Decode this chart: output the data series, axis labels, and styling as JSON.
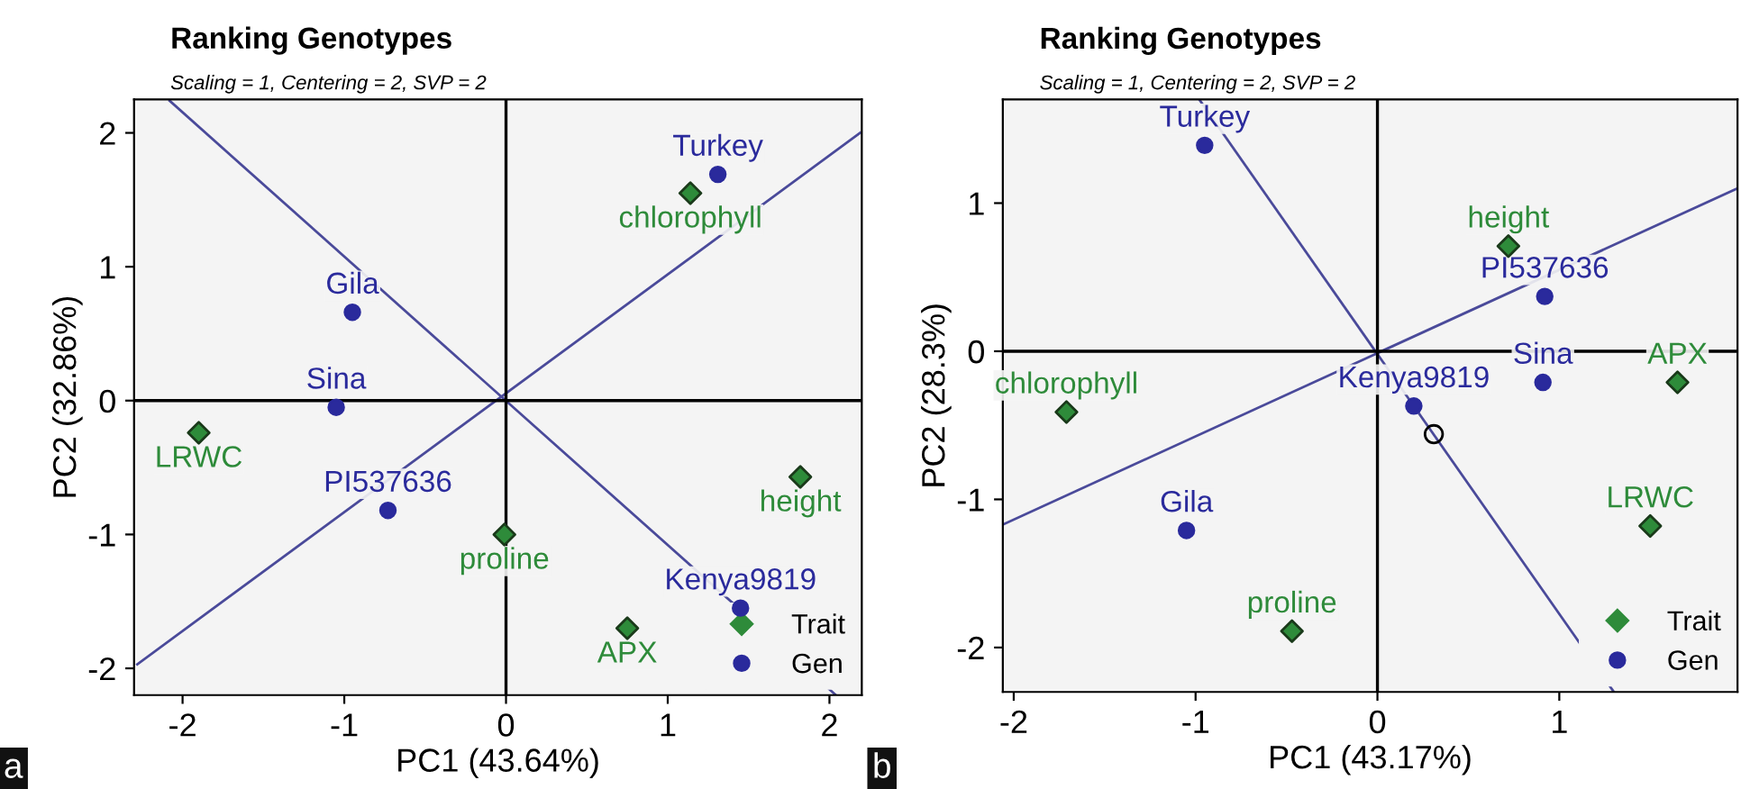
{
  "chart_data": [
    {
      "type": "scatter",
      "title": "Ranking Genotypes",
      "subtitle": "Scaling = 1, Centering = 2, SVP = 2",
      "xlabel": "PC1 (43.64%)",
      "ylabel": "PC2 (32.86%)",
      "xlim": [
        -2.3,
        2.2
      ],
      "ylim": [
        -2.2,
        2.25
      ],
      "xticks": [
        -2,
        -1,
        0,
        1,
        2
      ],
      "yticks": [
        -2,
        -1,
        0,
        1,
        2
      ],
      "grid": false,
      "legend": "bottom right",
      "annotations": [
        "a"
      ],
      "series": [
        {
          "name": "Trait",
          "type": "scatter",
          "marker": "diamond",
          "color": "#2e8b3a",
          "x": [
            1.14,
            -1.9,
            1.82,
            -0.01,
            0.75
          ],
          "values": [
            1.55,
            -0.24,
            -0.57,
            -1.0,
            -1.7
          ],
          "value_labels": [
            "chlorophyll",
            "LRWC",
            "height",
            "proline",
            "APX"
          ]
        },
        {
          "name": "Gen",
          "type": "scatter",
          "marker": "circle",
          "color": "#2a2a9c",
          "x": [
            1.31,
            -0.95,
            -1.05,
            -0.73,
            1.45
          ],
          "values": [
            1.69,
            0.66,
            -0.05,
            -0.82,
            -1.55
          ],
          "value_labels": [
            "Turkey",
            "Gila",
            "Sina",
            "PI537636",
            "Kenya9819"
          ]
        },
        {
          "type": "line",
          "color": "#4a4a9a",
          "x": [
            -2.08,
            2.04
          ],
          "values": [
            2.24,
            -2.2
          ]
        },
        {
          "type": "line",
          "color": "#4a4a9a",
          "x": [
            -2.28,
            2.19
          ],
          "values": [
            -1.97,
            2.0
          ]
        },
        {
          "type": "line",
          "color": "#000000",
          "x": [
            0,
            0
          ],
          "values": [
            -2.2,
            2.25
          ]
        },
        {
          "type": "line",
          "color": "#000000",
          "x": [
            -2.3,
            2.2
          ],
          "values": [
            0,
            0
          ]
        }
      ]
    },
    {
      "type": "scatter",
      "title": "Ranking Genotypes",
      "subtitle": "Scaling = 1, Centering = 2, SVP = 2",
      "xlabel": "PC1 (43.17%)",
      "ylabel": "PC2 (28.3%)",
      "xlim": [
        -2.06,
        1.98
      ],
      "ylim": [
        -2.3,
        1.7
      ],
      "xticks": [
        -2,
        -1,
        0,
        1
      ],
      "yticks": [
        -2,
        -1,
        0,
        1
      ],
      "grid": false,
      "legend": "bottom right",
      "annotations": [
        "b"
      ],
      "series": [
        {
          "name": "Trait",
          "type": "scatter",
          "marker": "diamond",
          "color": "#2e8b3a",
          "x": [
            0.72,
            1.65,
            -1.71,
            1.5,
            -0.47
          ],
          "values": [
            0.71,
            -0.21,
            -0.41,
            -1.18,
            -1.89
          ],
          "value_labels": [
            "height",
            "APX",
            "chlorophyll",
            "LRWC",
            "proline"
          ]
        },
        {
          "name": "Gen",
          "type": "scatter",
          "marker": "circle",
          "color": "#2a2a9c",
          "x": [
            -0.95,
            0.92,
            0.91,
            0.2,
            -1.05
          ],
          "values": [
            1.39,
            0.37,
            -0.21,
            -0.37,
            -1.21
          ],
          "value_labels": [
            "Turkey",
            "PI537636",
            "Sina",
            "Kenya9819",
            "Gila"
          ]
        },
        {
          "type": "scatter",
          "marker": "circle",
          "color": "#000000",
          "x": [
            0.31
          ],
          "values": [
            -0.56
          ]
        },
        {
          "type": "line",
          "color": "#4a4a9a",
          "x": [
            -0.98,
            1.3
          ],
          "values": [
            1.7,
            -2.3
          ]
        },
        {
          "type": "line",
          "color": "#4a4a9a",
          "x": [
            -2.06,
            1.98
          ],
          "values": [
            -1.17,
            1.1
          ]
        },
        {
          "type": "line",
          "color": "#000000",
          "x": [
            0,
            0
          ],
          "values": [
            -2.3,
            1.7
          ]
        },
        {
          "type": "line",
          "color": "#000000",
          "x": [
            -2.06,
            1.98
          ],
          "values": [
            0,
            0
          ]
        }
      ]
    }
  ]
}
